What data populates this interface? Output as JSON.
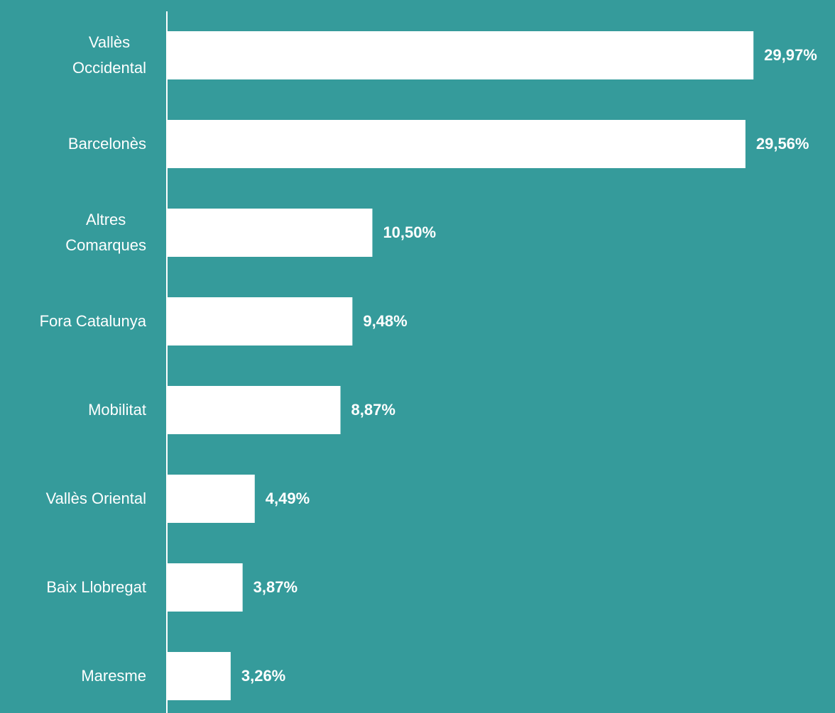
{
  "chart_data": {
    "type": "bar",
    "orientation": "horizontal",
    "categories": [
      "Vallès\nOccidental",
      "Barcelonès",
      "Altres\nComarques",
      "Fora Catalunya",
      "Mobilitat",
      "Vallès Oriental",
      "Baix Llobregat",
      "Maresme"
    ],
    "values": [
      29.97,
      29.56,
      10.5,
      9.48,
      8.87,
      4.49,
      3.87,
      3.26
    ],
    "value_labels": [
      "29,97%",
      "29,56%",
      "10,50%",
      "9,48%",
      "8,87%",
      "4,49%",
      "3,87%",
      "3,26%"
    ],
    "color": "#ffffff",
    "background": "#359b9b",
    "xlim": [
      0,
      30
    ]
  }
}
